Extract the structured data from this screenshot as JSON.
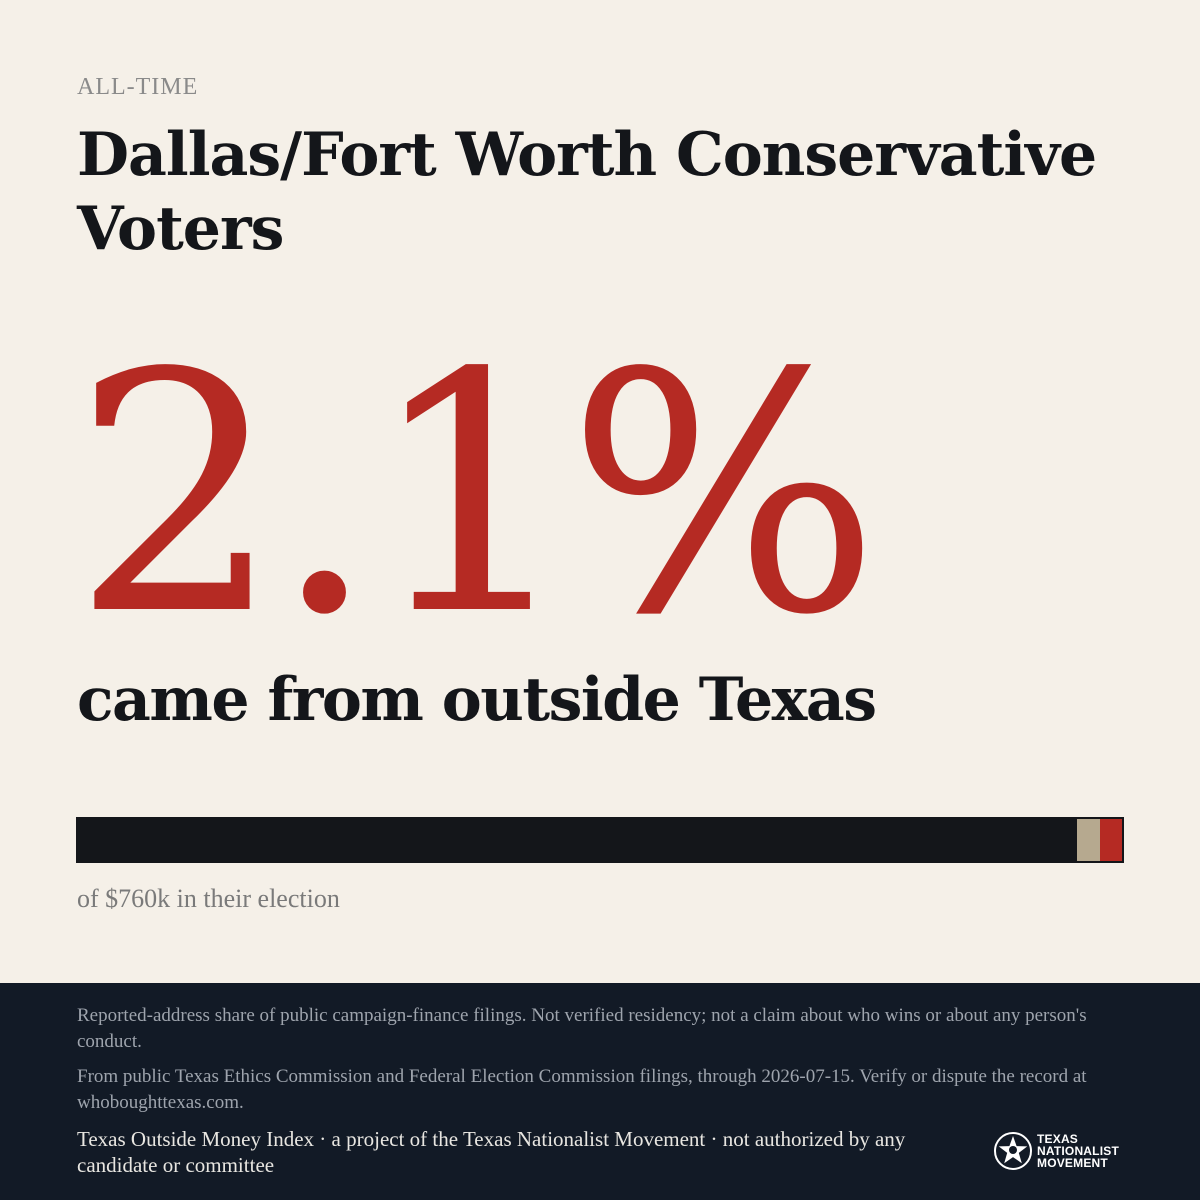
{
  "eyebrow": "ALL-TIME",
  "title": "Dallas/Fort Worth Conservative Voters",
  "stat": {
    "value": "2.1%",
    "label": "came from outside Texas"
  },
  "bar": {
    "outside_share_fraction": 0.021,
    "colors": {
      "in_state": "#14161a",
      "neutral": "#b6a98f",
      "outside": "#b52a23"
    }
  },
  "caption": "of $760k in their election",
  "footer": {
    "disclaimer": "Reported-address share of public campaign-finance filings. Not verified residency; not a claim about who wins or about any person's conduct.",
    "source": "From public Texas Ethics Commission and Federal Election Commission filings, through 2026-07-15. Verify or dispute the record at whoboughttexas.com.",
    "credit": "Texas Outside Money Index · a project of the Texas Nationalist Movement · not authorized by any candidate or committee"
  },
  "logo": {
    "icon": "star-seal-icon",
    "line1": "TEXAS",
    "line2": "NATIONALIST",
    "line3": "MOVEMENT"
  },
  "colors": {
    "background": "#f5f0e8",
    "accent": "#b52a23",
    "footer": "#121a26"
  }
}
